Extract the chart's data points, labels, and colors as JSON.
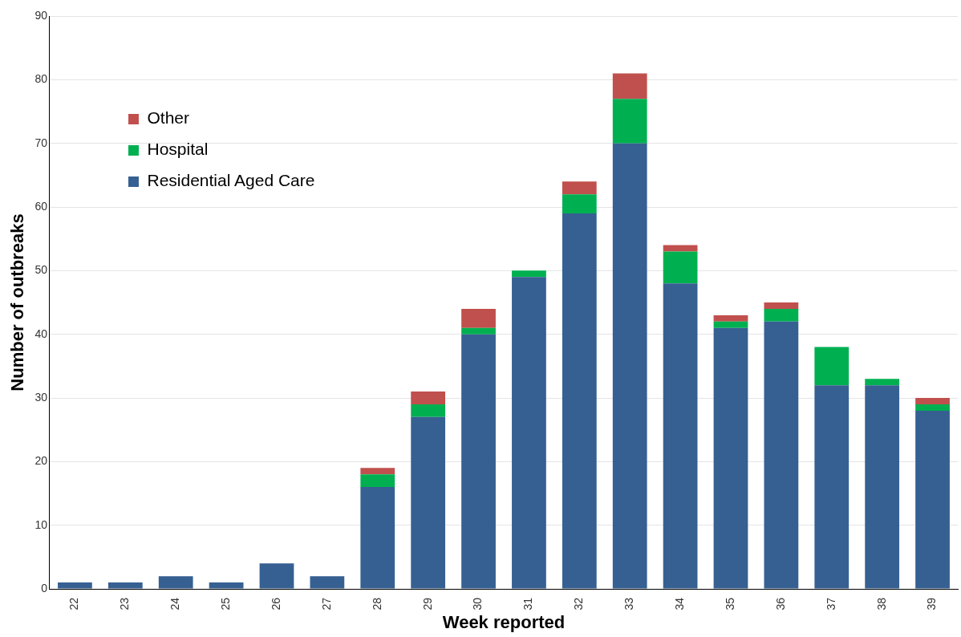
{
  "chart_data": {
    "type": "bar",
    "stacked": true,
    "xlabel": "Week reported",
    "ylabel": "Number of outbreaks",
    "categories": [
      "22",
      "23",
      "24",
      "25",
      "26",
      "27",
      "28",
      "29",
      "30",
      "31",
      "32",
      "33",
      "34",
      "35",
      "36",
      "37",
      "38",
      "39"
    ],
    "series": [
      {
        "name": "Residential Aged Care",
        "color": "#366092",
        "values": [
          1,
          1,
          2,
          1,
          4,
          2,
          16,
          27,
          40,
          49,
          59,
          70,
          48,
          41,
          42,
          32,
          32,
          28
        ]
      },
      {
        "name": "Hospital",
        "color": "#00b050",
        "values": [
          0,
          0,
          0,
          0,
          0,
          0,
          2,
          2,
          1,
          1,
          3,
          7,
          5,
          1,
          2,
          6,
          1,
          1
        ]
      },
      {
        "name": "Other",
        "color": "#c0504d",
        "values": [
          0,
          0,
          0,
          0,
          0,
          0,
          1,
          2,
          3,
          0,
          2,
          4,
          1,
          1,
          1,
          0,
          0,
          1
        ]
      }
    ],
    "ylim": [
      0,
      90
    ],
    "yticks": [
      0,
      10,
      20,
      30,
      40,
      50,
      60,
      70,
      80,
      90
    ],
    "grid": "y",
    "legend": "top left"
  }
}
